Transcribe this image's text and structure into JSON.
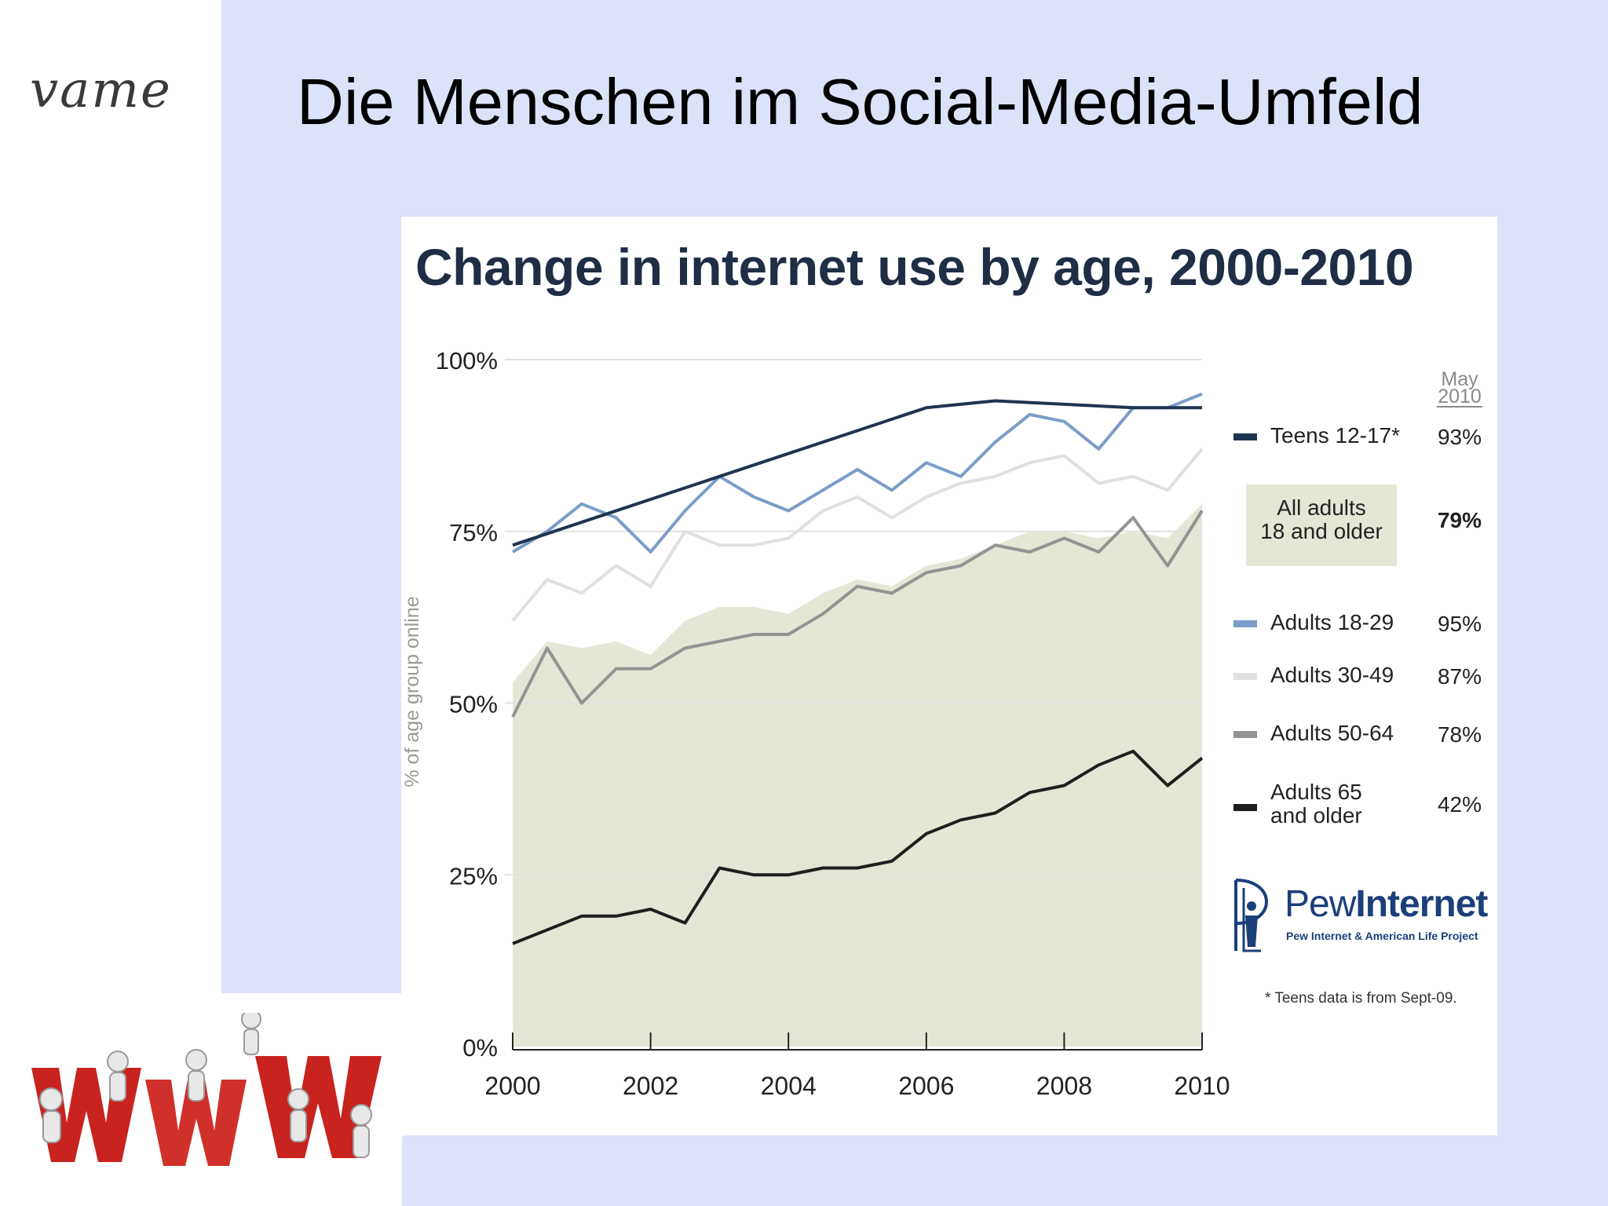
{
  "logo_text": "vame",
  "slide_title": "Die Menschen im Social-Media-Umfeld",
  "chart_data": {
    "type": "line",
    "title": "Change in internet use by age, 2000-2010",
    "ylabel": "% of age group online",
    "xlabel": "",
    "xlim": [
      2000,
      2010
    ],
    "ylim": [
      0,
      100
    ],
    "yticks": [
      "0%",
      "25%",
      "50%",
      "75%",
      "100%"
    ],
    "xticks": [
      "2000",
      "2002",
      "2004",
      "2006",
      "2008",
      "2010"
    ],
    "end_column_label": "May 2010",
    "grid": true,
    "footnote": "* Teens data is from Sept-09.",
    "series": [
      {
        "name": "Teens 12-17*",
        "end_label": "93%",
        "color": "#1f3450",
        "x": [
          2000,
          2006,
          2007,
          2009,
          2010
        ],
        "y": [
          73,
          93,
          94,
          93,
          93
        ]
      },
      {
        "name": "All adults 18 and older",
        "end_label": "79%",
        "color": "#e6e6d6",
        "fill": true,
        "x": [
          2000,
          2000.5,
          2001,
          2001.5,
          2002,
          2002.5,
          2003,
          2003.5,
          2004,
          2004.5,
          2005,
          2005.5,
          2006,
          2006.5,
          2007,
          2007.5,
          2008,
          2008.5,
          2009,
          2009.5,
          2010
        ],
        "y": [
          53,
          59,
          58,
          59,
          57,
          62,
          64,
          64,
          63,
          66,
          68,
          67,
          70,
          71,
          73,
          75,
          75,
          74,
          75,
          74,
          79
        ]
      },
      {
        "name": "Adults 18-29",
        "end_label": "95%",
        "color": "#7b9dc7",
        "x": [
          2000,
          2000.5,
          2001,
          2001.5,
          2002,
          2002.5,
          2003,
          2003.5,
          2004,
          2004.5,
          2005,
          2005.5,
          2006,
          2006.5,
          2007,
          2007.5,
          2008,
          2008.5,
          2009,
          2009.5,
          2010
        ],
        "y": [
          72,
          75,
          79,
          77,
          72,
          78,
          83,
          80,
          78,
          81,
          84,
          81,
          85,
          83,
          88,
          92,
          91,
          87,
          93,
          93,
          95
        ]
      },
      {
        "name": "Adults 30-49",
        "end_label": "87%",
        "color": "#e0e0e3",
        "x": [
          2000,
          2000.5,
          2001,
          2001.5,
          2002,
          2002.5,
          2003,
          2003.5,
          2004,
          2004.5,
          2005,
          2005.5,
          2006,
          2006.5,
          2007,
          2007.5,
          2008,
          2008.5,
          2009,
          2009.5,
          2010
        ],
        "y": [
          62,
          68,
          66,
          70,
          67,
          75,
          73,
          73,
          74,
          78,
          80,
          77,
          80,
          82,
          83,
          85,
          86,
          82,
          83,
          81,
          87
        ]
      },
      {
        "name": "Adults 50-64",
        "end_label": "78%",
        "color": "#939393",
        "x": [
          2000,
          2000.5,
          2001,
          2001.5,
          2002,
          2002.5,
          2003,
          2003.5,
          2004,
          2004.5,
          2005,
          2005.5,
          2006,
          2006.5,
          2007,
          2007.5,
          2008,
          2008.5,
          2009,
          2009.5,
          2010
        ],
        "y": [
          48,
          58,
          50,
          55,
          55,
          58,
          59,
          60,
          60,
          63,
          67,
          66,
          69,
          70,
          73,
          72,
          74,
          72,
          77,
          70,
          78
        ]
      },
      {
        "name": "Adults 65 and older",
        "end_label": "42%",
        "color": "#1f1f1f",
        "x": [
          2000,
          2000.5,
          2001,
          2001.5,
          2002,
          2002.5,
          2003,
          2003.5,
          2004,
          2004.5,
          2005,
          2005.5,
          2006,
          2006.5,
          2007,
          2007.5,
          2008,
          2008.5,
          2009,
          2009.5,
          2010
        ],
        "y": [
          15,
          17,
          19,
          19,
          20,
          18,
          26,
          25,
          25,
          26,
          26,
          27,
          31,
          33,
          34,
          37,
          38,
          41,
          43,
          38,
          42
        ]
      }
    ]
  },
  "pew_logo": {
    "name_light": "Pew",
    "name_bold": "Internet",
    "subtitle": "Pew Internet & American Life Project"
  }
}
